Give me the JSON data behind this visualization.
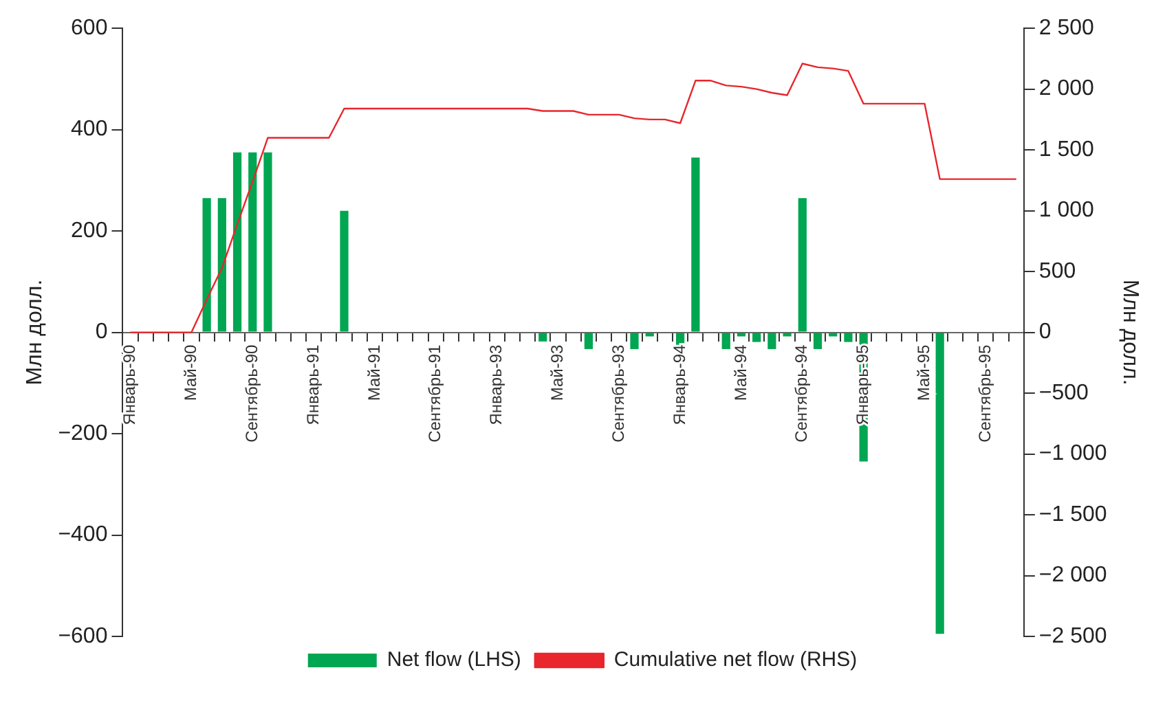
{
  "chart_data": {
    "type": "bar",
    "ylabel": "Млн долл.",
    "y2label": "Млн долл.",
    "legend": "bottom",
    "categories": [
      "Январь-90",
      null,
      null,
      null,
      "Май-90",
      null,
      null,
      null,
      "Сентябрь-90",
      null,
      null,
      null,
      "Январь-91",
      null,
      null,
      null,
      "Май-91",
      null,
      null,
      null,
      "Сентябрь-91",
      null,
      null,
      null,
      "Январь-93",
      null,
      null,
      null,
      "Май-93",
      null,
      null,
      null,
      "Сентябрь-93",
      null,
      null,
      null,
      "Январь-94",
      null,
      null,
      null,
      "Май-94",
      null,
      null,
      null,
      "Сентябрь-94",
      null,
      null,
      null,
      "Январь-95",
      null,
      null,
      null,
      "Май-95",
      null,
      null,
      null,
      "Сентябрь-95",
      null,
      null
    ],
    "series": [
      {
        "name": "Net flow (LHS)",
        "color": "#00a651",
        "values": [
          null,
          null,
          null,
          null,
          null,
          265,
          265,
          355,
          355,
          355,
          null,
          null,
          null,
          null,
          240,
          null,
          null,
          null,
          null,
          null,
          null,
          null,
          null,
          null,
          null,
          null,
          null,
          -18,
          null,
          null,
          -33,
          null,
          null,
          -33,
          -8,
          null,
          -33,
          345,
          null,
          -33,
          -8,
          -19,
          -33,
          -8,
          265,
          -33,
          -8,
          -19,
          -255,
          null,
          null,
          null,
          null,
          -595,
          null,
          null,
          null,
          null,
          null
        ]
      },
      {
        "name": "Cumulative net flow (RHS)",
        "type": "line",
        "axis": "y2",
        "color": "#e8262c",
        "values": [
          0,
          0,
          0,
          0,
          0,
          270,
          530,
          890,
          1240,
          1600,
          1600,
          1600,
          1600,
          1600,
          1840,
          1840,
          1840,
          1840,
          1840,
          1840,
          1840,
          1840,
          1840,
          1840,
          1840,
          1840,
          1840,
          1820,
          1820,
          1820,
          1790,
          1790,
          1790,
          1760,
          1750,
          1750,
          1720,
          2070,
          2070,
          2030,
          2020,
          2000,
          1970,
          1950,
          2210,
          2180,
          2170,
          2150,
          1880,
          1880,
          1880,
          1880,
          1880,
          1260,
          1260,
          1260,
          1260,
          1260,
          1260
        ]
      }
    ],
    "ylim": [
      -600,
      600
    ],
    "yticks": [
      {
        "value": -600,
        "label": "−600"
      },
      {
        "value": -400,
        "label": "−400"
      },
      {
        "value": -200,
        "label": "−200"
      },
      0,
      200,
      400,
      600
    ],
    "y2lim": [
      -2500,
      2500
    ],
    "y2ticks": [
      {
        "value": -2500,
        "label": "−2 500"
      },
      {
        "value": -2000,
        "label": "−2 000"
      },
      {
        "value": -1500,
        "label": "−1 500"
      },
      {
        "value": -1000,
        "label": "−1 000"
      },
      {
        "value": -500,
        "label": "−500"
      },
      0,
      500,
      {
        "value": 1000,
        "label": "1 000"
      },
      {
        "value": 1500,
        "label": "1 500"
      },
      {
        "value": 2000,
        "label": "2 000"
      },
      {
        "value": 2500,
        "label": "2 500"
      }
    ]
  }
}
